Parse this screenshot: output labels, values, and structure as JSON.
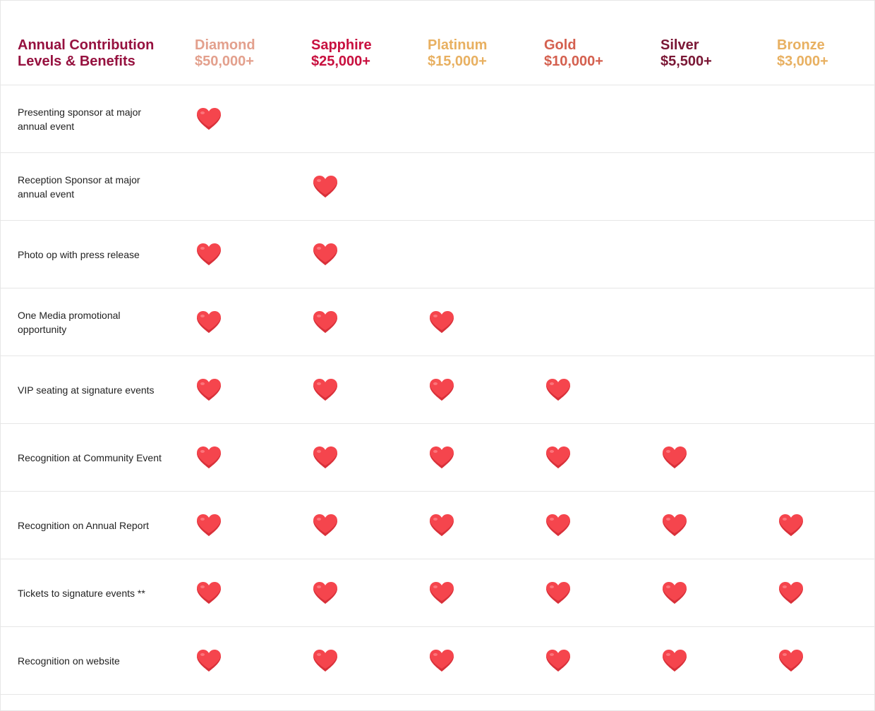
{
  "title_line1": "Annual Contribution",
  "title_line2": "Levels & Benefits",
  "tiers": [
    {
      "name": "Diamond",
      "amount": "$50,000+",
      "color": "#e3a08d"
    },
    {
      "name": "Sapphire",
      "amount": "$25,000+",
      "color": "#c8103f"
    },
    {
      "name": "Platinum",
      "amount": "$15,000+",
      "color": "#e8b061"
    },
    {
      "name": "Gold",
      "amount": "$10,000+",
      "color": "#d4604f"
    },
    {
      "name": "Silver",
      "amount": "$5,500+",
      "color": "#7a1735"
    },
    {
      "name": "Bronze",
      "amount": "$3,000+",
      "color": "#e8b061"
    }
  ],
  "heart_icon": "heart-icon",
  "heart_color": "#f5454d",
  "benefits": [
    {
      "label": "Presenting sponsor at major annual event",
      "tiers": [
        true,
        false,
        false,
        false,
        false,
        false
      ]
    },
    {
      "label": "Reception Sponsor at major annual event",
      "tiers": [
        false,
        true,
        false,
        false,
        false,
        false
      ]
    },
    {
      "label": "Photo op with press release",
      "tiers": [
        true,
        true,
        false,
        false,
        false,
        false
      ]
    },
    {
      "label": "One Media promotional opportunity",
      "tiers": [
        true,
        true,
        true,
        false,
        false,
        false
      ]
    },
    {
      "label": "VIP seating at signature events",
      "tiers": [
        true,
        true,
        true,
        true,
        false,
        false
      ]
    },
    {
      "label": "Recognition at Community Event",
      "tiers": [
        true,
        true,
        true,
        true,
        true,
        false
      ]
    },
    {
      "label": "Recognition on Annual Report",
      "tiers": [
        true,
        true,
        true,
        true,
        true,
        true
      ]
    },
    {
      "label": "Tickets to signature events **",
      "tiers": [
        true,
        true,
        true,
        true,
        true,
        true
      ]
    },
    {
      "label": "Recognition on website",
      "tiers": [
        true,
        true,
        true,
        true,
        true,
        true
      ]
    }
  ]
}
